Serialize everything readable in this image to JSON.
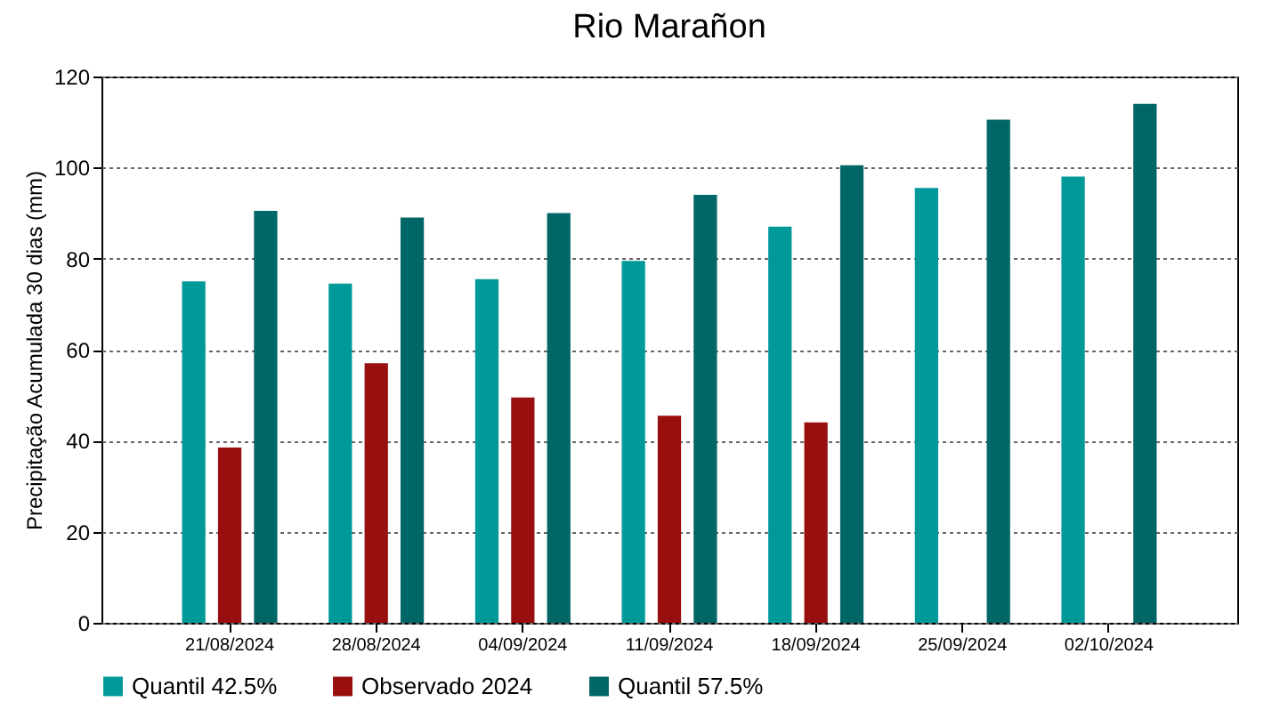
{
  "chart_data": {
    "type": "bar",
    "title": "Rio Marañon",
    "ylabel": "Precipitação Acumulada 30 dias (mm)",
    "categories": [
      "21/08/2024",
      "28/08/2024",
      "04/09/2024",
      "11/09/2024",
      "18/09/2024",
      "25/09/2024",
      "02/10/2024"
    ],
    "series": [
      {
        "name": "Quantil 42.5%",
        "color": "#009999",
        "values": [
          75,
          74.5,
          75.5,
          79.5,
          87,
          95.5,
          98
        ]
      },
      {
        "name": "Observado 2024",
        "color": "#990f0f",
        "values": [
          38.5,
          57,
          49.5,
          45.5,
          44,
          null,
          null
        ]
      },
      {
        "name": "Quantil 57.5%",
        "color": "#006666",
        "values": [
          90.5,
          89,
          90,
          94,
          100.5,
          110.5,
          114
        ]
      }
    ],
    "ylim": [
      0,
      120
    ],
    "yticks": [
      0,
      20,
      40,
      60,
      80,
      100,
      120
    ],
    "grid": "y",
    "legend": "bottom"
  }
}
